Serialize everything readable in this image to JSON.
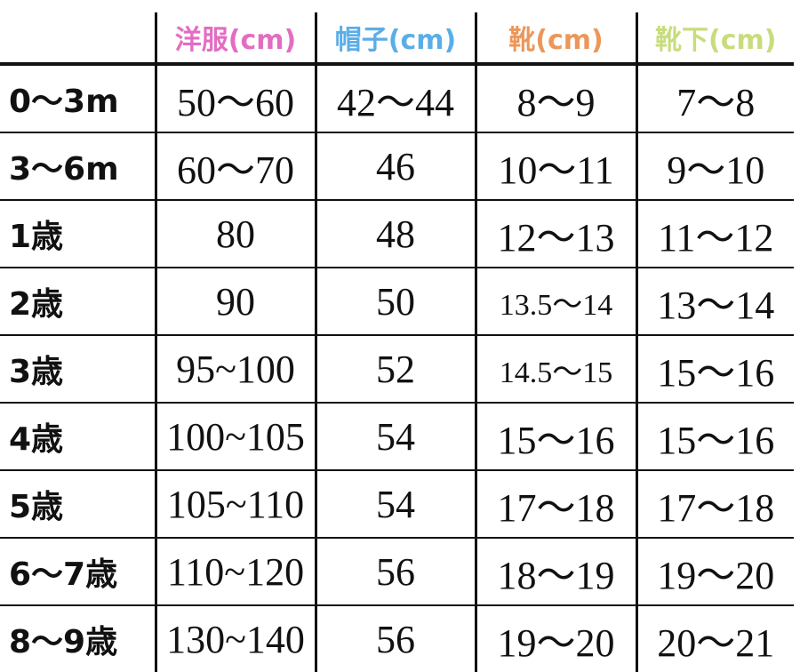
{
  "header": {
    "columns": [
      {
        "label": "洋服(cm)",
        "color": "#e26dc2"
      },
      {
        "label": "帽子(cm)",
        "color": "#5aaee8"
      },
      {
        "label": "靴(cm)",
        "color": "#ec975a"
      },
      {
        "label": "靴下(cm)",
        "color": "#c8dc7c"
      }
    ]
  },
  "rows": [
    {
      "age": "0〜3m",
      "clothes": "50〜60",
      "hat": "42〜44",
      "shoes": "8〜9",
      "socks": "7〜8"
    },
    {
      "age": "3〜6m",
      "clothes": "60〜70",
      "hat": "46",
      "shoes": "10〜11",
      "socks": "9〜10"
    },
    {
      "age": "1歳",
      "clothes": "80",
      "hat": "48",
      "shoes": "12〜13",
      "socks": "11〜12"
    },
    {
      "age": "2歳",
      "clothes": "90",
      "hat": "50",
      "shoes": "13.5〜14",
      "socks": "13〜14"
    },
    {
      "age": "3歳",
      "clothes": "95~100",
      "hat": "52",
      "shoes": "14.5〜15",
      "socks": "15〜16"
    },
    {
      "age": "4歳",
      "clothes": "100~105",
      "hat": "54",
      "shoes": "15〜16",
      "socks": "15〜16"
    },
    {
      "age": "5歳",
      "clothes": "105~110",
      "hat": "54",
      "shoes": "17〜18",
      "socks": "17〜18"
    },
    {
      "age": "6〜7歳",
      "clothes": "110~120",
      "hat": "56",
      "shoes": "18〜19",
      "socks": "19〜20"
    },
    {
      "age": "8〜9歳",
      "clothes": "130~140",
      "hat": "56",
      "shoes": "19〜20",
      "socks": "20〜21"
    }
  ]
}
